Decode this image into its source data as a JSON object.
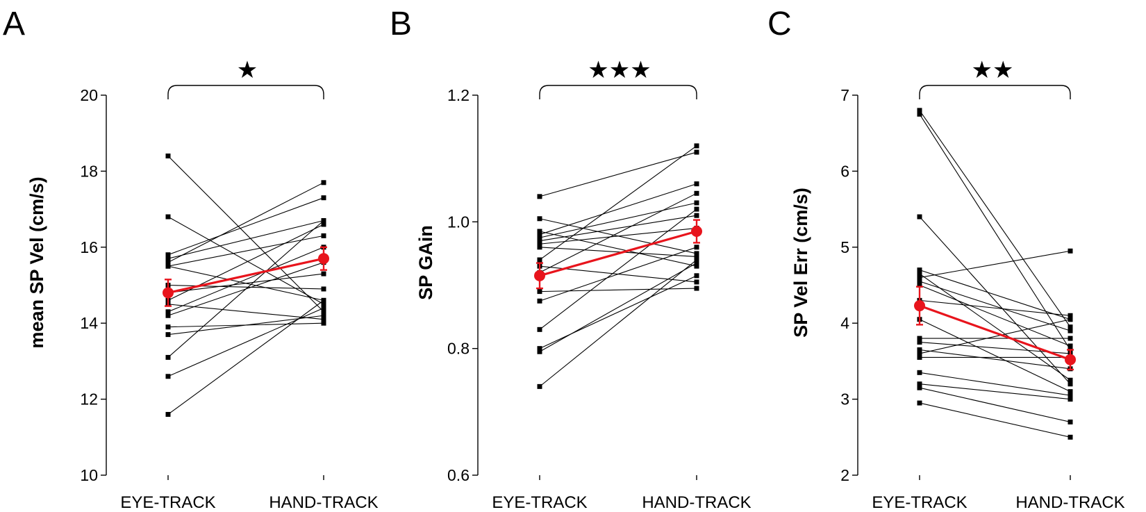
{
  "chart_data": [
    {
      "type": "scatter",
      "panel": "A",
      "ylabel": "mean SP Vel (cm/s)",
      "xlabel": "",
      "categories": [
        "EYE-TRACK",
        "HAND-TRACK"
      ],
      "ylim": [
        10,
        20
      ],
      "yticks": [
        "10",
        "12",
        "14",
        "16",
        "18",
        "20"
      ],
      "significance": "★",
      "subjects": [
        [
          18.4,
          14.3
        ],
        [
          16.8,
          14.5
        ],
        [
          15.8,
          17.3
        ],
        [
          15.7,
          16.7
        ],
        [
          15.5,
          16.3
        ],
        [
          15.6,
          17.7
        ],
        [
          15.5,
          14.6
        ],
        [
          15.0,
          14.9
        ],
        [
          14.8,
          15.3
        ],
        [
          14.6,
          16.6
        ],
        [
          14.5,
          14.1
        ],
        [
          14.3,
          16.0
        ],
        [
          14.2,
          15.6
        ],
        [
          13.9,
          14.0
        ],
        [
          13.7,
          14.2
        ],
        [
          13.1,
          16.7
        ],
        [
          12.6,
          14.4
        ],
        [
          11.6,
          14.6
        ]
      ],
      "mean": {
        "name": "mean",
        "values": [
          14.8,
          15.7
        ],
        "error": [
          0.35,
          0.3
        ]
      },
      "colors": {
        "subject": "#000000",
        "mean": "#e8141c"
      }
    },
    {
      "type": "scatter",
      "panel": "B",
      "ylabel": "SP GAin",
      "xlabel": "",
      "categories": [
        "EYE-TRACK",
        "HAND-TRACK"
      ],
      "ylim": [
        0.6,
        1.2
      ],
      "yticks": [
        "0.6",
        "0.8",
        "1.0",
        "1.2"
      ],
      "significance": "★★★",
      "subjects": [
        [
          1.04,
          1.11
        ],
        [
          1.005,
          0.95
        ],
        [
          0.985,
          0.93
        ],
        [
          0.98,
          1.06
        ],
        [
          0.975,
          1.03
        ],
        [
          0.97,
          1.01
        ],
        [
          0.965,
          0.99
        ],
        [
          0.96,
          0.945
        ],
        [
          0.94,
          1.12
        ],
        [
          0.93,
          0.905
        ],
        [
          0.92,
          1.045
        ],
        [
          0.89,
          0.895
        ],
        [
          0.875,
          0.96
        ],
        [
          0.83,
          1.02
        ],
        [
          0.8,
          0.915
        ],
        [
          0.795,
          0.935
        ],
        [
          0.74,
          0.94
        ]
      ],
      "mean": {
        "name": "mean",
        "values": [
          0.915,
          0.985
        ],
        "error": [
          0.02,
          0.018
        ]
      },
      "colors": {
        "subject": "#000000",
        "mean": "#e8141c"
      }
    },
    {
      "type": "scatter",
      "panel": "C",
      "ylabel": "SP Vel Err (cm/s)",
      "xlabel": "",
      "categories": [
        "EYE-TRACK",
        "HAND-TRACK"
      ],
      "ylim": [
        2,
        7
      ],
      "yticks": [
        "2",
        "3",
        "4",
        "5",
        "6",
        "7"
      ],
      "significance": "★★",
      "subjects": [
        [
          6.8,
          3.95
        ],
        [
          6.75,
          3.65
        ],
        [
          5.4,
          3.2
        ],
        [
          4.7,
          4.05
        ],
        [
          4.65,
          3.25
        ],
        [
          4.6,
          4.95
        ],
        [
          4.55,
          3.9
        ],
        [
          4.5,
          3.7
        ],
        [
          4.3,
          4.1
        ],
        [
          4.05,
          3.1
        ],
        [
          3.8,
          3.8
        ],
        [
          3.75,
          3.6
        ],
        [
          3.65,
          3.4
        ],
        [
          3.6,
          4.05
        ],
        [
          3.55,
          3.55
        ],
        [
          3.35,
          3.05
        ],
        [
          3.2,
          3.0
        ],
        [
          3.15,
          2.7
        ],
        [
          2.95,
          2.5
        ]
      ],
      "mean": {
        "name": "mean",
        "values": [
          4.23,
          3.52
        ],
        "error": [
          0.25,
          0.13
        ]
      },
      "colors": {
        "subject": "#000000",
        "mean": "#e8141c"
      }
    }
  ],
  "panel_labels": [
    "A",
    "B",
    "C"
  ]
}
